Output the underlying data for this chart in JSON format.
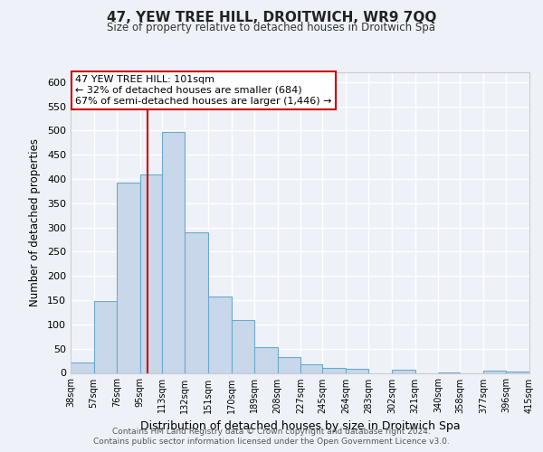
{
  "title": "47, YEW TREE HILL, DROITWICH, WR9 7QQ",
  "subtitle": "Size of property relative to detached houses in Droitwich Spa",
  "xlabel": "Distribution of detached houses by size in Droitwich Spa",
  "ylabel": "Number of detached properties",
  "bar_color": "#c8d8ea",
  "bar_edge_color": "#6aaacf",
  "background_color": "#eef2f8",
  "grid_color": "#ffffff",
  "bins": [
    38,
    57,
    76,
    95,
    113,
    132,
    151,
    170,
    189,
    208,
    227,
    245,
    264,
    283,
    302,
    321,
    340,
    358,
    377,
    396,
    415
  ],
  "values": [
    22,
    148,
    393,
    409,
    497,
    290,
    158,
    110,
    53,
    33,
    17,
    10,
    8,
    0,
    6,
    0,
    1,
    0,
    5,
    2
  ],
  "tick_labels": [
    "38sqm",
    "57sqm",
    "76sqm",
    "95sqm",
    "113sqm",
    "132sqm",
    "151sqm",
    "170sqm",
    "189sqm",
    "208sqm",
    "227sqm",
    "245sqm",
    "264sqm",
    "283sqm",
    "302sqm",
    "321sqm",
    "340sqm",
    "358sqm",
    "377sqm",
    "396sqm",
    "415sqm"
  ],
  "vline_x": 101,
  "vline_color": "#cc0000",
  "annotation_title": "47 YEW TREE HILL: 101sqm",
  "annotation_line1": "← 32% of detached houses are smaller (684)",
  "annotation_line2": "67% of semi-detached houses are larger (1,446) →",
  "annotation_box_color": "#ffffff",
  "annotation_box_edge": "#cc0000",
  "ylim": [
    0,
    620
  ],
  "yticks": [
    0,
    50,
    100,
    150,
    200,
    250,
    300,
    350,
    400,
    450,
    500,
    550,
    600
  ],
  "footer1": "Contains HM Land Registry data © Crown copyright and database right 2024.",
  "footer2": "Contains public sector information licensed under the Open Government Licence v3.0."
}
